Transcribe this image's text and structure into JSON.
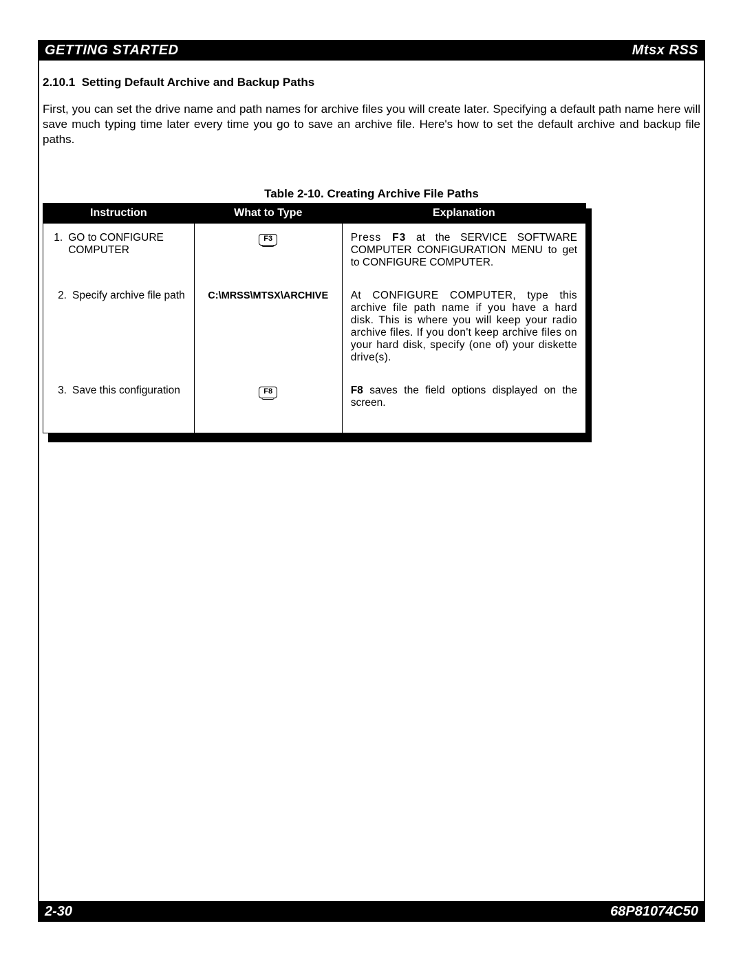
{
  "header": {
    "left": "GETTING STARTED",
    "right": "Mtsx RSS"
  },
  "footer": {
    "left": "2-30",
    "right": "68P81074C50"
  },
  "section": {
    "number": "2.10.1",
    "title": "Setting Default Archive and Backup Paths",
    "body": "First, you can set the drive name and path names for archive files you will create later. Specifying a default path name here will save much typing time later every time you go to save an archive file. Here's how to set the default archive and backup file paths."
  },
  "table": {
    "caption": "Table 2-10.  Creating Archive File Paths",
    "columns": [
      "Instruction",
      "What to Type",
      "Explanation"
    ],
    "rows": [
      {
        "num": "1.",
        "instruction": "GO to CONFIGURE COMPUTER",
        "type_kind": "key",
        "type_text": "F3",
        "explanation_pre_bold": "Press ",
        "explanation_bold": "F3",
        "explanation_post_bold": " at the SERVICE SOFTWARE COMPUTER CONFIGURATION MENU to get to CONFIGURE COMPUTER."
      },
      {
        "num": "2.",
        "instruction": "Specify archive file path",
        "type_kind": "path",
        "type_text": "C:\\MRSS\\MTSX\\ARCHIVE",
        "explanation_pre_bold": "",
        "explanation_bold": "",
        "explanation_post_bold": "At CONFIGURE COMPUTER, type this archive file path name if you have a hard disk. This is where you will keep your radio archive files. If you don't keep archive files on your hard disk, specify (one of) your diskette drive(s)."
      },
      {
        "num": "3.",
        "instruction": "Save this configuration",
        "type_kind": "key",
        "type_text": "F8",
        "explanation_pre_bold": "",
        "explanation_bold": "F8",
        "explanation_post_bold": " saves the field options displayed on the screen."
      }
    ]
  },
  "colors": {
    "bg": "#ffffff",
    "fg": "#000000",
    "bar_bg": "#000000",
    "bar_fg": "#ffffff"
  }
}
